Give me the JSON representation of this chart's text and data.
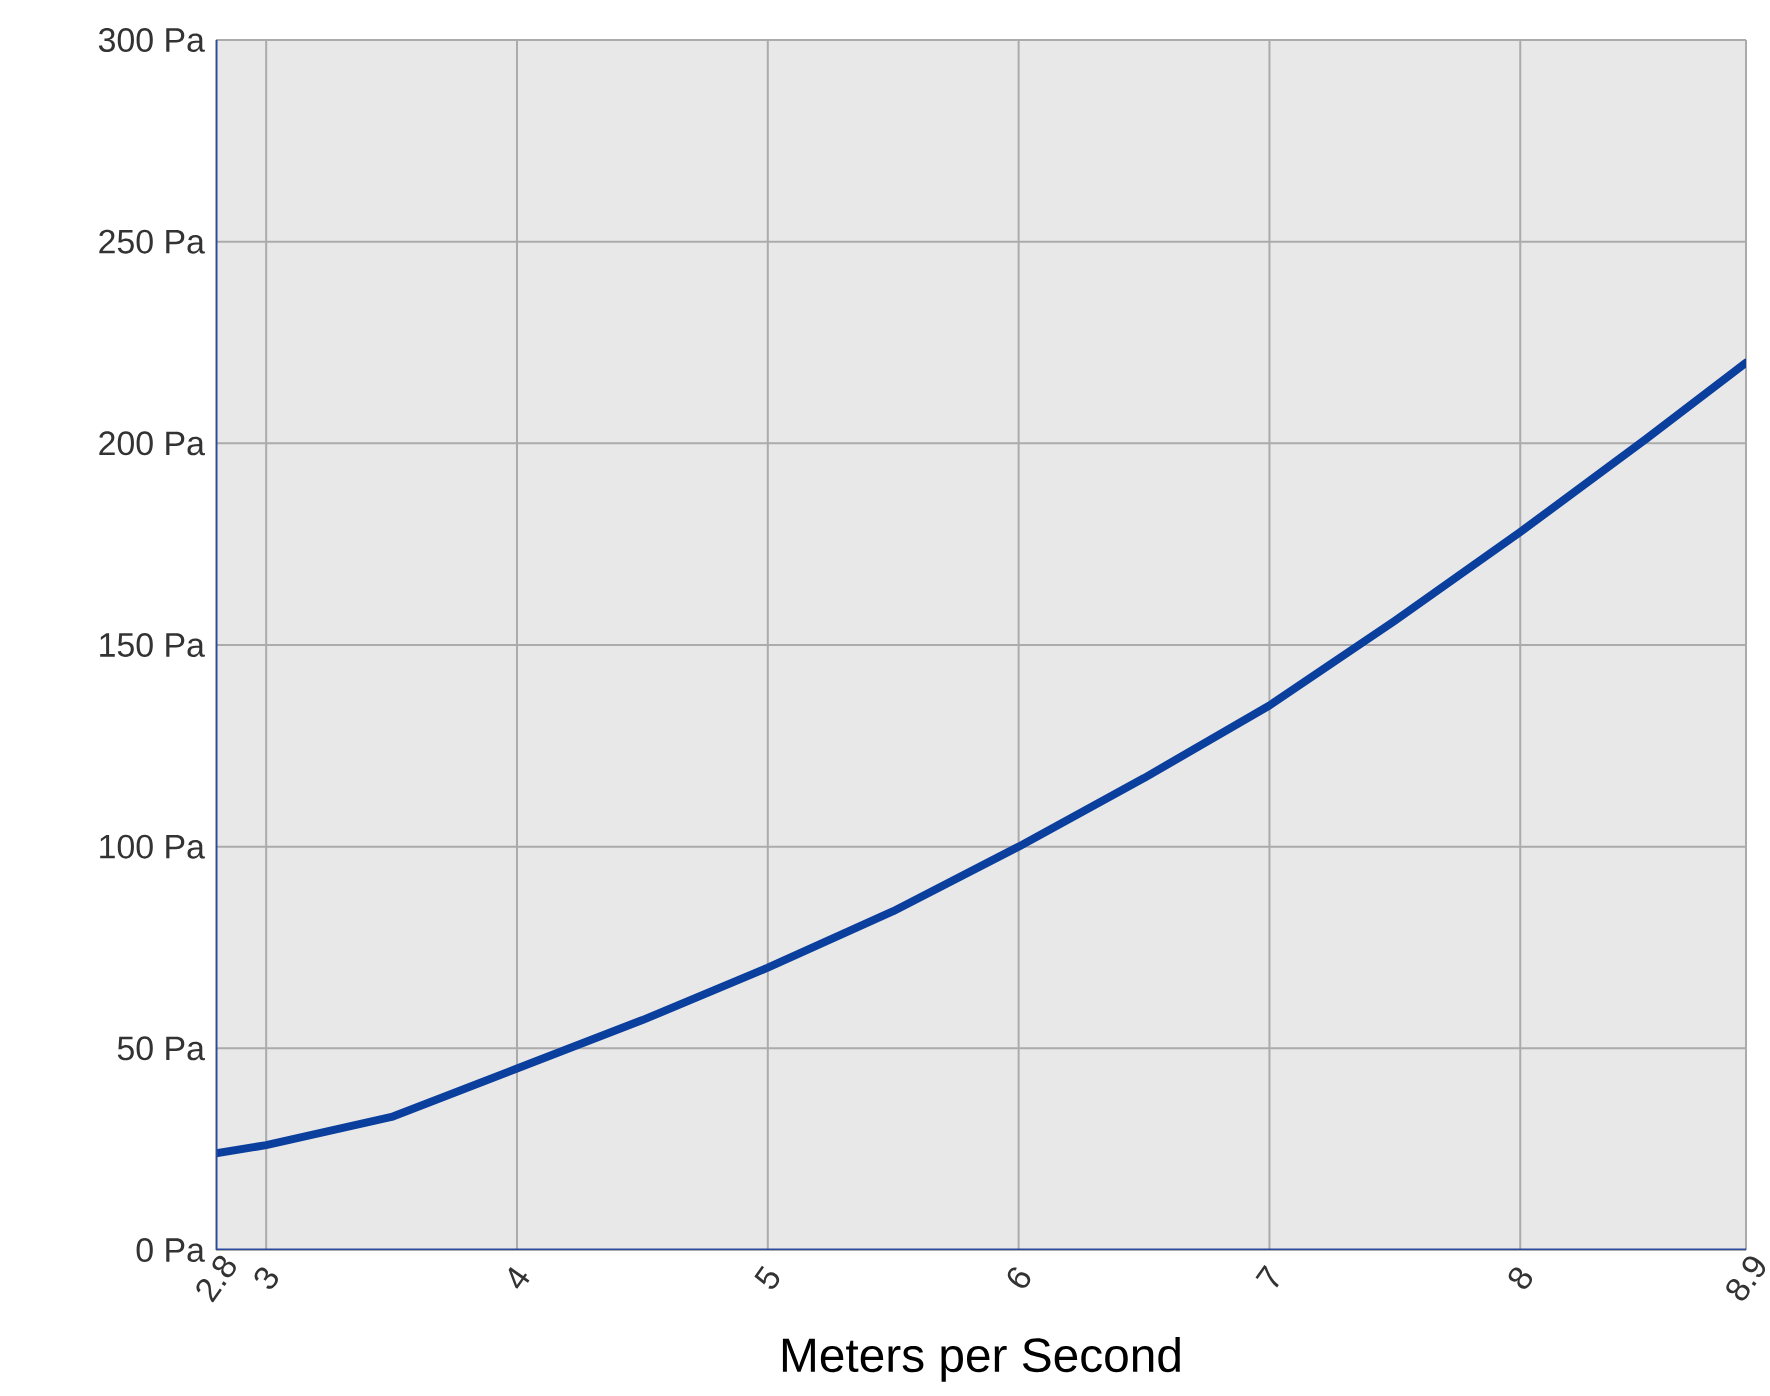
{
  "chart_data": {
    "type": "line",
    "xlabel": "Meters per Second",
    "x": [
      2.8,
      3,
      3.5,
      4,
      4.5,
      5,
      5.5,
      6,
      6.5,
      7,
      7.5,
      8,
      8.5,
      8.9
    ],
    "series": [
      {
        "color": "#0b3f9e",
        "values": [
          24,
          26,
          33,
          45,
          57,
          70,
          84,
          100,
          117,
          135,
          156,
          178,
          201,
          220
        ]
      }
    ],
    "xlim": [
      2.8,
      8.9
    ],
    "xticks": [
      2.8,
      3,
      4,
      5,
      6,
      7,
      8,
      8.9
    ],
    "ylim": [
      0,
      300
    ],
    "yticks": [
      {
        "value": 0,
        "label": "0 Pa"
      },
      {
        "value": 50,
        "label": "50 Pa"
      },
      {
        "value": 100,
        "label": "100 Pa"
      },
      {
        "value": 150,
        "label": "150 Pa"
      },
      {
        "value": 200,
        "label": "200 Pa"
      },
      {
        "value": 250,
        "label": "250 Pa"
      },
      {
        "value": 300,
        "label": "300 Pa"
      }
    ],
    "grid": true,
    "marker": "none",
    "line_style": "solid"
  }
}
